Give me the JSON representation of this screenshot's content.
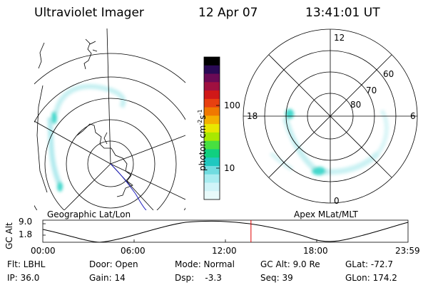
{
  "header": {
    "title": "Ultraviolet Imager",
    "date": "12 Apr 07",
    "time": "13:41:01 UT"
  },
  "geo_panel": {
    "label": "Geographic Lat/Lon"
  },
  "apex_panel": {
    "label": "Apex  MLat/MLT",
    "mlt_labels": [
      "12",
      "18",
      "6",
      "0"
    ],
    "lat_labels": [
      "60",
      "70",
      "80"
    ]
  },
  "colorbar": {
    "unit_label": "photon cm",
    "unit_exp1": "-2",
    "unit_mid": "s",
    "unit_exp2": "-1",
    "ticks": [
      "100",
      "10"
    ],
    "colors": [
      "#000000",
      "#2a0a55",
      "#6a0a55",
      "#a01040",
      "#d01818",
      "#e84010",
      "#f07800",
      "#f4b000",
      "#e8e800",
      "#a8e800",
      "#48e040",
      "#10d080",
      "#20c8c0",
      "#70dce0",
      "#a8ecf0",
      "#d0f4f8",
      "#e8fafa"
    ]
  },
  "altitude_panel": {
    "ylabel": "GC Alt",
    "yticks": [
      "9.0",
      "1.8"
    ],
    "xticks": [
      "00:00",
      "06:00",
      "12:00",
      "18:00",
      "23:59"
    ],
    "marker_time_hours": 13.68,
    "marker_color": "#e00000"
  },
  "info": {
    "filter": "Flt: LBHL",
    "ip": "IP: 36.0",
    "door": "Door: Open",
    "gain": "Gain: 14",
    "mode": "Mode: Normal",
    "dsp": "Dsp:",
    "dsp_val": "-3.3",
    "gcalt": "GC Alt: 9.0 Re",
    "seq": "Seq: 39",
    "glat": "GLat: -72.7",
    "glon": "GLon: 174.2"
  }
}
